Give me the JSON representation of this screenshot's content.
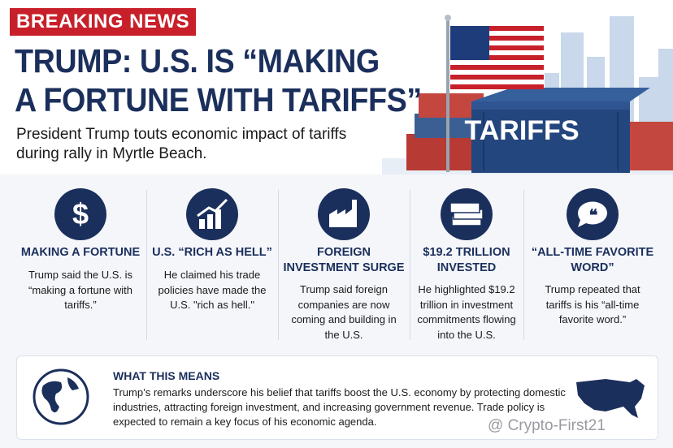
{
  "header": {
    "badge": "BREAKING NEWS",
    "title_lines": [
      "TRUMP: U.S. IS “MAKING",
      "A FORTUNE WITH TARIFFS”"
    ],
    "subtitle_lines": [
      "President Trump touts economic impact of tariffs",
      "during rally in Myrtle Beach."
    ],
    "container_label": "TARIFFS"
  },
  "items": [
    {
      "heading": "MAKING A FORTUNE",
      "text": "Trump said the U.S. is “making a fortune with tariffs.”"
    },
    {
      "heading": "U.S. “RICH AS HELL”",
      "text": "He claimed his trade policies have made the U.S. \"rich as hell.\""
    },
    {
      "heading": "FOREIGN INVESTMENT SURGE",
      "text": "Trump said foreign companies are now coming and building in the U.S."
    },
    {
      "heading": "$19.2 TRILLION INVESTED",
      "text": "He highlighted $19.2 trillion in investment commitments flowing into the U.S."
    },
    {
      "heading": "“ALL-TIME FAVORITE WORD”",
      "text": "Trump repeated that tariffs is his “all-time favorite word.”"
    }
  ],
  "summary": {
    "title": "WHAT THIS MEANS",
    "text": "Trump’s remarks underscore his belief that tariffs boost the U.S. economy by protecting domestic industries, attracting foreign investment, and increasing government revenue. Trade policy is expected to remain a key focus of his economic agenda."
  },
  "watermark": "@ Crypto-First21"
}
